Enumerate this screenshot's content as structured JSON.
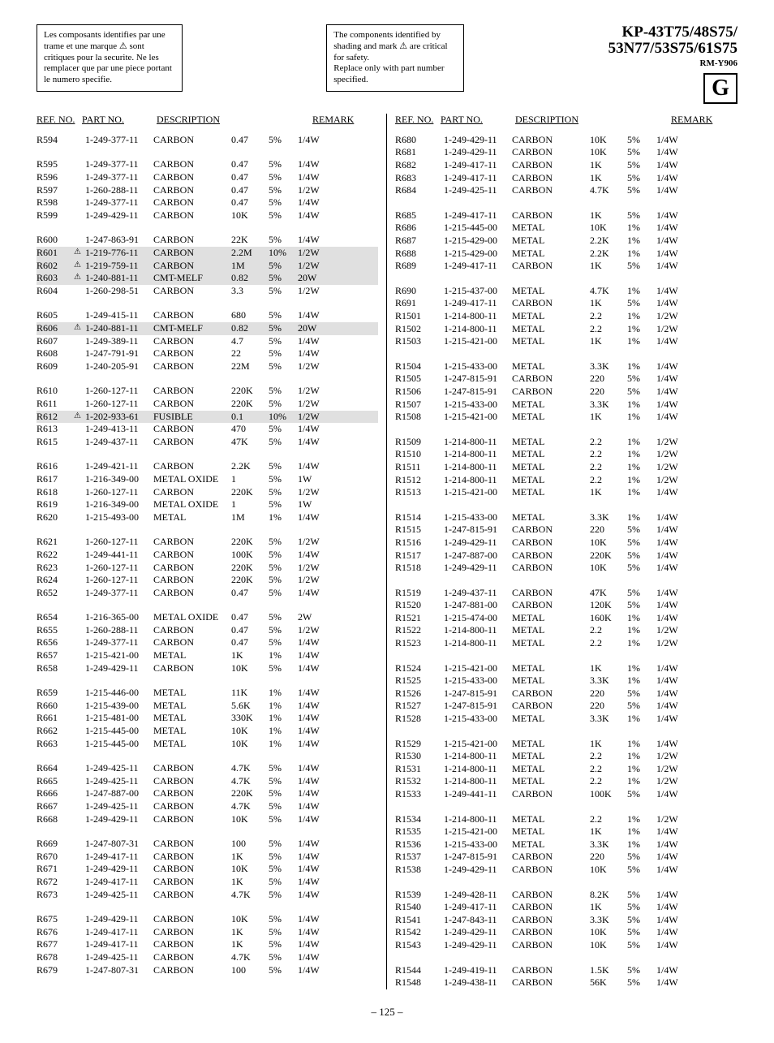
{
  "header": {
    "note_fr": "Les composants identifies par une trame et une marque ⚠ sont critiques pour la securite. Ne les remplacer que par une piece portant le numero specifie.",
    "note_en": "The components identified by shading and mark ⚠ are critical for safety.\nReplace only with part number specified.",
    "model_line1": "KP-43T75/48S75/",
    "model_line2": "53N77/53S75/61S75",
    "subtitle": "RM-Y906",
    "section_letter": "G"
  },
  "col_headers": {
    "ref": "REF. NO.",
    "part": "PART NO.",
    "desc": "DESCRIPTION",
    "remark": "REMARK"
  },
  "page_number": "– 125 –",
  "left_groups": [
    [
      {
        "ref": "R594",
        "part": "1-249-377-11",
        "desc": "CARBON",
        "val": "0.47",
        "tol": "5%",
        "rem": "1/4W"
      }
    ],
    [
      {
        "ref": "R595",
        "part": "1-249-377-11",
        "desc": "CARBON",
        "val": "0.47",
        "tol": "5%",
        "rem": "1/4W"
      },
      {
        "ref": "R596",
        "part": "1-249-377-11",
        "desc": "CARBON",
        "val": "0.47",
        "tol": "5%",
        "rem": "1/4W"
      },
      {
        "ref": "R597",
        "part": "1-260-288-11",
        "desc": "CARBON",
        "val": "0.47",
        "tol": "5%",
        "rem": "1/2W"
      },
      {
        "ref": "R598",
        "part": "1-249-377-11",
        "desc": "CARBON",
        "val": "0.47",
        "tol": "5%",
        "rem": "1/4W"
      },
      {
        "ref": "R599",
        "part": "1-249-429-11",
        "desc": "CARBON",
        "val": "10K",
        "tol": "5%",
        "rem": "1/4W"
      }
    ],
    [
      {
        "ref": "R600",
        "part": "1-247-863-91",
        "desc": "CARBON",
        "val": "22K",
        "tol": "5%",
        "rem": "1/4W"
      },
      {
        "ref": "R601",
        "warn": true,
        "shaded": true,
        "part": "1-219-776-11",
        "desc": "CARBON",
        "val": "2.2M",
        "tol": "10%",
        "rem": "1/2W"
      },
      {
        "ref": "R602",
        "warn": true,
        "shaded": true,
        "part": "1-219-759-11",
        "desc": "CARBON",
        "val": "1M",
        "tol": "5%",
        "rem": "1/2W"
      },
      {
        "ref": "R603",
        "warn": true,
        "shaded": true,
        "part": "1-240-881-11",
        "desc": "CMT-MELF",
        "val": "0.82",
        "tol": "5%",
        "rem": "20W"
      },
      {
        "ref": "R604",
        "part": "1-260-298-51",
        "desc": "CARBON",
        "val": "3.3",
        "tol": "5%",
        "rem": "1/2W"
      }
    ],
    [
      {
        "ref": "R605",
        "part": "1-249-415-11",
        "desc": "CARBON",
        "val": "680",
        "tol": "5%",
        "rem": "1/4W"
      },
      {
        "ref": "R606",
        "warn": true,
        "shaded": true,
        "part": "1-240-881-11",
        "desc": "CMT-MELF",
        "val": "0.82",
        "tol": "5%",
        "rem": "20W"
      },
      {
        "ref": "R607",
        "part": "1-249-389-11",
        "desc": "CARBON",
        "val": "4.7",
        "tol": "5%",
        "rem": "1/4W"
      },
      {
        "ref": "R608",
        "part": "1-247-791-91",
        "desc": "CARBON",
        "val": "22",
        "tol": "5%",
        "rem": "1/4W"
      },
      {
        "ref": "R609",
        "part": "1-240-205-91",
        "desc": "CARBON",
        "val": "22M",
        "tol": "5%",
        "rem": "1/2W"
      }
    ],
    [
      {
        "ref": "R610",
        "part": "1-260-127-11",
        "desc": "CARBON",
        "val": "220K",
        "tol": "5%",
        "rem": "1/2W"
      },
      {
        "ref": "R611",
        "part": "1-260-127-11",
        "desc": "CARBON",
        "val": "220K",
        "tol": "5%",
        "rem": "1/2W"
      },
      {
        "ref": "R612",
        "warn": true,
        "shaded": true,
        "part": "1-202-933-61",
        "desc": "FUSIBLE",
        "val": "0.1",
        "tol": "10%",
        "rem": "1/2W"
      },
      {
        "ref": "R613",
        "part": "1-249-413-11",
        "desc": "CARBON",
        "val": "470",
        "tol": "5%",
        "rem": "1/4W"
      },
      {
        "ref": "R615",
        "part": "1-249-437-11",
        "desc": "CARBON",
        "val": "47K",
        "tol": "5%",
        "rem": "1/4W"
      }
    ],
    [
      {
        "ref": "R616",
        "part": "1-249-421-11",
        "desc": "CARBON",
        "val": "2.2K",
        "tol": "5%",
        "rem": "1/4W"
      },
      {
        "ref": "R617",
        "part": "1-216-349-00",
        "desc": "METAL OXIDE",
        "val": "1",
        "tol": "5%",
        "rem": "1W"
      },
      {
        "ref": "R618",
        "part": "1-260-127-11",
        "desc": "CARBON",
        "val": "220K",
        "tol": "5%",
        "rem": "1/2W"
      },
      {
        "ref": "R619",
        "part": "1-216-349-00",
        "desc": "METAL OXIDE",
        "val": "1",
        "tol": "5%",
        "rem": "1W"
      },
      {
        "ref": "R620",
        "part": "1-215-493-00",
        "desc": "METAL",
        "val": "1M",
        "tol": "1%",
        "rem": "1/4W"
      }
    ],
    [
      {
        "ref": "R621",
        "part": "1-260-127-11",
        "desc": "CARBON",
        "val": "220K",
        "tol": "5%",
        "rem": "1/2W"
      },
      {
        "ref": "R622",
        "part": "1-249-441-11",
        "desc": "CARBON",
        "val": "100K",
        "tol": "5%",
        "rem": "1/4W"
      },
      {
        "ref": "R623",
        "part": "1-260-127-11",
        "desc": "CARBON",
        "val": "220K",
        "tol": "5%",
        "rem": "1/2W"
      },
      {
        "ref": "R624",
        "part": "1-260-127-11",
        "desc": "CARBON",
        "val": "220K",
        "tol": "5%",
        "rem": "1/2W"
      },
      {
        "ref": "R652",
        "part": "1-249-377-11",
        "desc": "CARBON",
        "val": "0.47",
        "tol": "5%",
        "rem": "1/4W"
      }
    ],
    [
      {
        "ref": "R654",
        "part": "1-216-365-00",
        "desc": "METAL OXIDE",
        "val": "0.47",
        "tol": "5%",
        "rem": "2W"
      },
      {
        "ref": "R655",
        "part": "1-260-288-11",
        "desc": "CARBON",
        "val": "0.47",
        "tol": "5%",
        "rem": "1/2W"
      },
      {
        "ref": "R656",
        "part": "1-249-377-11",
        "desc": "CARBON",
        "val": "0.47",
        "tol": "5%",
        "rem": "1/4W"
      },
      {
        "ref": "R657",
        "part": "1-215-421-00",
        "desc": "METAL",
        "val": "1K",
        "tol": "1%",
        "rem": "1/4W"
      },
      {
        "ref": "R658",
        "part": "1-249-429-11",
        "desc": "CARBON",
        "val": "10K",
        "tol": "5%",
        "rem": "1/4W"
      }
    ],
    [
      {
        "ref": "R659",
        "part": "1-215-446-00",
        "desc": "METAL",
        "val": "11K",
        "tol": "1%",
        "rem": "1/4W"
      },
      {
        "ref": "R660",
        "part": "1-215-439-00",
        "desc": "METAL",
        "val": "5.6K",
        "tol": "1%",
        "rem": "1/4W"
      },
      {
        "ref": "R661",
        "part": "1-215-481-00",
        "desc": "METAL",
        "val": "330K",
        "tol": "1%",
        "rem": "1/4W"
      },
      {
        "ref": "R662",
        "part": "1-215-445-00",
        "desc": "METAL",
        "val": "10K",
        "tol": "1%",
        "rem": "1/4W"
      },
      {
        "ref": "R663",
        "part": "1-215-445-00",
        "desc": "METAL",
        "val": "10K",
        "tol": "1%",
        "rem": "1/4W"
      }
    ],
    [
      {
        "ref": "R664",
        "part": "1-249-425-11",
        "desc": "CARBON",
        "val": "4.7K",
        "tol": "5%",
        "rem": "1/4W"
      },
      {
        "ref": "R665",
        "part": "1-249-425-11",
        "desc": "CARBON",
        "val": "4.7K",
        "tol": "5%",
        "rem": "1/4W"
      },
      {
        "ref": "R666",
        "part": "1-247-887-00",
        "desc": "CARBON",
        "val": "220K",
        "tol": "5%",
        "rem": "1/4W"
      },
      {
        "ref": "R667",
        "part": "1-249-425-11",
        "desc": "CARBON",
        "val": "4.7K",
        "tol": "5%",
        "rem": "1/4W"
      },
      {
        "ref": "R668",
        "part": "1-249-429-11",
        "desc": "CARBON",
        "val": "10K",
        "tol": "5%",
        "rem": "1/4W"
      }
    ],
    [
      {
        "ref": "R669",
        "part": "1-247-807-31",
        "desc": "CARBON",
        "val": "100",
        "tol": "5%",
        "rem": "1/4W"
      },
      {
        "ref": "R670",
        "part": "1-249-417-11",
        "desc": "CARBON",
        "val": "1K",
        "tol": "5%",
        "rem": "1/4W"
      },
      {
        "ref": "R671",
        "part": "1-249-429-11",
        "desc": "CARBON",
        "val": "10K",
        "tol": "5%",
        "rem": "1/4W"
      },
      {
        "ref": "R672",
        "part": "1-249-417-11",
        "desc": "CARBON",
        "val": "1K",
        "tol": "5%",
        "rem": "1/4W"
      },
      {
        "ref": "R673",
        "part": "1-249-425-11",
        "desc": "CARBON",
        "val": "4.7K",
        "tol": "5%",
        "rem": "1/4W"
      }
    ],
    [
      {
        "ref": "R675",
        "part": "1-249-429-11",
        "desc": "CARBON",
        "val": "10K",
        "tol": "5%",
        "rem": "1/4W"
      },
      {
        "ref": "R676",
        "part": "1-249-417-11",
        "desc": "CARBON",
        "val": "1K",
        "tol": "5%",
        "rem": "1/4W"
      },
      {
        "ref": "R677",
        "part": "1-249-417-11",
        "desc": "CARBON",
        "val": "1K",
        "tol": "5%",
        "rem": "1/4W"
      },
      {
        "ref": "R678",
        "part": "1-249-425-11",
        "desc": "CARBON",
        "val": "4.7K",
        "tol": "5%",
        "rem": "1/4W"
      },
      {
        "ref": "R679",
        "part": "1-247-807-31",
        "desc": "CARBON",
        "val": "100",
        "tol": "5%",
        "rem": "1/4W"
      }
    ]
  ],
  "right_groups": [
    [
      {
        "ref": "R680",
        "part": "1-249-429-11",
        "desc": "CARBON",
        "val": "10K",
        "tol": "5%",
        "rem": "1/4W"
      },
      {
        "ref": "R681",
        "part": "1-249-429-11",
        "desc": "CARBON",
        "val": "10K",
        "tol": "5%",
        "rem": "1/4W"
      },
      {
        "ref": "R682",
        "part": "1-249-417-11",
        "desc": "CARBON",
        "val": "1K",
        "tol": "5%",
        "rem": "1/4W"
      },
      {
        "ref": "R683",
        "part": "1-249-417-11",
        "desc": "CARBON",
        "val": "1K",
        "tol": "5%",
        "rem": "1/4W"
      },
      {
        "ref": "R684",
        "part": "1-249-425-11",
        "desc": "CARBON",
        "val": "4.7K",
        "tol": "5%",
        "rem": "1/4W"
      }
    ],
    [
      {
        "ref": "R685",
        "part": "1-249-417-11",
        "desc": "CARBON",
        "val": "1K",
        "tol": "5%",
        "rem": "1/4W"
      },
      {
        "ref": "R686",
        "part": "1-215-445-00",
        "desc": "METAL",
        "val": "10K",
        "tol": "1%",
        "rem": "1/4W"
      },
      {
        "ref": "R687",
        "part": "1-215-429-00",
        "desc": "METAL",
        "val": "2.2K",
        "tol": "1%",
        "rem": "1/4W"
      },
      {
        "ref": "R688",
        "part": "1-215-429-00",
        "desc": "METAL",
        "val": "2.2K",
        "tol": "1%",
        "rem": "1/4W"
      },
      {
        "ref": "R689",
        "part": "1-249-417-11",
        "desc": "CARBON",
        "val": "1K",
        "tol": "5%",
        "rem": "1/4W"
      }
    ],
    [
      {
        "ref": "R690",
        "part": "1-215-437-00",
        "desc": "METAL",
        "val": "4.7K",
        "tol": "1%",
        "rem": "1/4W"
      },
      {
        "ref": "R691",
        "part": "1-249-417-11",
        "desc": "CARBON",
        "val": "1K",
        "tol": "5%",
        "rem": "1/4W"
      },
      {
        "ref": "R1501",
        "part": "1-214-800-11",
        "desc": "METAL",
        "val": "2.2",
        "tol": "1%",
        "rem": "1/2W"
      },
      {
        "ref": "R1502",
        "part": "1-214-800-11",
        "desc": "METAL",
        "val": "2.2",
        "tol": "1%",
        "rem": "1/2W"
      },
      {
        "ref": "R1503",
        "part": "1-215-421-00",
        "desc": "METAL",
        "val": "1K",
        "tol": "1%",
        "rem": "1/4W"
      }
    ],
    [
      {
        "ref": "R1504",
        "part": "1-215-433-00",
        "desc": "METAL",
        "val": "3.3K",
        "tol": "1%",
        "rem": "1/4W"
      },
      {
        "ref": "R1505",
        "part": "1-247-815-91",
        "desc": "CARBON",
        "val": "220",
        "tol": "5%",
        "rem": "1/4W"
      },
      {
        "ref": "R1506",
        "part": "1-247-815-91",
        "desc": "CARBON",
        "val": "220",
        "tol": "5%",
        "rem": "1/4W"
      },
      {
        "ref": "R1507",
        "part": "1-215-433-00",
        "desc": "METAL",
        "val": "3.3K",
        "tol": "1%",
        "rem": "1/4W"
      },
      {
        "ref": "R1508",
        "part": "1-215-421-00",
        "desc": "METAL",
        "val": "1K",
        "tol": "1%",
        "rem": "1/4W"
      }
    ],
    [
      {
        "ref": "R1509",
        "part": "1-214-800-11",
        "desc": "METAL",
        "val": "2.2",
        "tol": "1%",
        "rem": "1/2W"
      },
      {
        "ref": "R1510",
        "part": "1-214-800-11",
        "desc": "METAL",
        "val": "2.2",
        "tol": "1%",
        "rem": "1/2W"
      },
      {
        "ref": "R1511",
        "part": "1-214-800-11",
        "desc": "METAL",
        "val": "2.2",
        "tol": "1%",
        "rem": "1/2W"
      },
      {
        "ref": "R1512",
        "part": "1-214-800-11",
        "desc": "METAL",
        "val": "2.2",
        "tol": "1%",
        "rem": "1/2W"
      },
      {
        "ref": "R1513",
        "part": "1-215-421-00",
        "desc": "METAL",
        "val": "1K",
        "tol": "1%",
        "rem": "1/4W"
      }
    ],
    [
      {
        "ref": "R1514",
        "part": "1-215-433-00",
        "desc": "METAL",
        "val": "3.3K",
        "tol": "1%",
        "rem": "1/4W"
      },
      {
        "ref": "R1515",
        "part": "1-247-815-91",
        "desc": "CARBON",
        "val": "220",
        "tol": "5%",
        "rem": "1/4W"
      },
      {
        "ref": "R1516",
        "part": "1-249-429-11",
        "desc": "CARBON",
        "val": "10K",
        "tol": "5%",
        "rem": "1/4W"
      },
      {
        "ref": "R1517",
        "part": "1-247-887-00",
        "desc": "CARBON",
        "val": "220K",
        "tol": "5%",
        "rem": "1/4W"
      },
      {
        "ref": "R1518",
        "part": "1-249-429-11",
        "desc": "CARBON",
        "val": "10K",
        "tol": "5%",
        "rem": "1/4W"
      }
    ],
    [
      {
        "ref": "R1519",
        "part": "1-249-437-11",
        "desc": "CARBON",
        "val": "47K",
        "tol": "5%",
        "rem": "1/4W"
      },
      {
        "ref": "R1520",
        "part": "1-247-881-00",
        "desc": "CARBON",
        "val": "120K",
        "tol": "5%",
        "rem": "1/4W"
      },
      {
        "ref": "R1521",
        "part": "1-215-474-00",
        "desc": "METAL",
        "val": "160K",
        "tol": "1%",
        "rem": "1/4W"
      },
      {
        "ref": "R1522",
        "part": "1-214-800-11",
        "desc": "METAL",
        "val": "2.2",
        "tol": "1%",
        "rem": "1/2W"
      },
      {
        "ref": "R1523",
        "part": "1-214-800-11",
        "desc": "METAL",
        "val": "2.2",
        "tol": "1%",
        "rem": "1/2W"
      }
    ],
    [
      {
        "ref": "R1524",
        "part": "1-215-421-00",
        "desc": "METAL",
        "val": "1K",
        "tol": "1%",
        "rem": "1/4W"
      },
      {
        "ref": "R1525",
        "part": "1-215-433-00",
        "desc": "METAL",
        "val": "3.3K",
        "tol": "1%",
        "rem": "1/4W"
      },
      {
        "ref": "R1526",
        "part": "1-247-815-91",
        "desc": "CARBON",
        "val": "220",
        "tol": "5%",
        "rem": "1/4W"
      },
      {
        "ref": "R1527",
        "part": "1-247-815-91",
        "desc": "CARBON",
        "val": "220",
        "tol": "5%",
        "rem": "1/4W"
      },
      {
        "ref": "R1528",
        "part": "1-215-433-00",
        "desc": "METAL",
        "val": "3.3K",
        "tol": "1%",
        "rem": "1/4W"
      }
    ],
    [
      {
        "ref": "R1529",
        "part": "1-215-421-00",
        "desc": "METAL",
        "val": "1K",
        "tol": "1%",
        "rem": "1/4W"
      },
      {
        "ref": "R1530",
        "part": "1-214-800-11",
        "desc": "METAL",
        "val": "2.2",
        "tol": "1%",
        "rem": "1/2W"
      },
      {
        "ref": "R1531",
        "part": "1-214-800-11",
        "desc": "METAL",
        "val": "2.2",
        "tol": "1%",
        "rem": "1/2W"
      },
      {
        "ref": "R1532",
        "part": "1-214-800-11",
        "desc": "METAL",
        "val": "2.2",
        "tol": "1%",
        "rem": "1/2W"
      },
      {
        "ref": "R1533",
        "part": "1-249-441-11",
        "desc": "CARBON",
        "val": "100K",
        "tol": "5%",
        "rem": "1/4W"
      }
    ],
    [
      {
        "ref": "R1534",
        "part": "1-214-800-11",
        "desc": "METAL",
        "val": "2.2",
        "tol": "1%",
        "rem": "1/2W"
      },
      {
        "ref": "R1535",
        "part": "1-215-421-00",
        "desc": "METAL",
        "val": "1K",
        "tol": "1%",
        "rem": "1/4W"
      },
      {
        "ref": "R1536",
        "part": "1-215-433-00",
        "desc": "METAL",
        "val": "3.3K",
        "tol": "1%",
        "rem": "1/4W"
      },
      {
        "ref": "R1537",
        "part": "1-247-815-91",
        "desc": "CARBON",
        "val": "220",
        "tol": "5%",
        "rem": "1/4W"
      },
      {
        "ref": "R1538",
        "part": "1-249-429-11",
        "desc": "CARBON",
        "val": "10K",
        "tol": "5%",
        "rem": "1/4W"
      }
    ],
    [
      {
        "ref": "R1539",
        "part": "1-249-428-11",
        "desc": "CARBON",
        "val": "8.2K",
        "tol": "5%",
        "rem": "1/4W"
      },
      {
        "ref": "R1540",
        "part": "1-249-417-11",
        "desc": "CARBON",
        "val": "1K",
        "tol": "5%",
        "rem": "1/4W"
      },
      {
        "ref": "R1541",
        "part": "1-247-843-11",
        "desc": "CARBON",
        "val": "3.3K",
        "tol": "5%",
        "rem": "1/4W"
      },
      {
        "ref": "R1542",
        "part": "1-249-429-11",
        "desc": "CARBON",
        "val": "10K",
        "tol": "5%",
        "rem": "1/4W"
      },
      {
        "ref": "R1543",
        "part": "1-249-429-11",
        "desc": "CARBON",
        "val": "10K",
        "tol": "5%",
        "rem": "1/4W"
      }
    ],
    [
      {
        "ref": "R1544",
        "part": "1-249-419-11",
        "desc": "CARBON",
        "val": "1.5K",
        "tol": "5%",
        "rem": "1/4W"
      },
      {
        "ref": "R1548",
        "part": "1-249-438-11",
        "desc": "CARBON",
        "val": "56K",
        "tol": "5%",
        "rem": "1/4W"
      }
    ]
  ]
}
